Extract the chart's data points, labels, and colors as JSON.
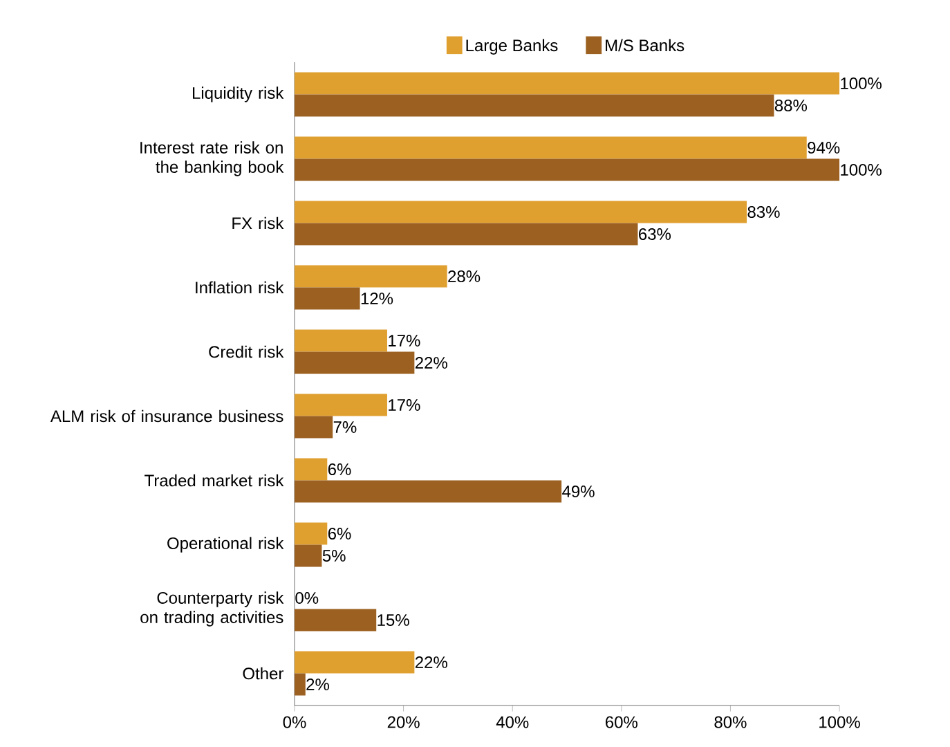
{
  "chart_data": {
    "type": "bar",
    "orientation": "horizontal",
    "categories": [
      "Liquidity risk",
      "Interest rate risk on the banking book",
      "FX risk",
      "Inflation risk",
      "Credit risk",
      "ALM risk of insurance business",
      "Traded market risk",
      "Operational risk",
      "Counterparty risk on trading activities",
      "Other"
    ],
    "series": [
      {
        "name": "Large Banks",
        "color": "#e0a030",
        "values": [
          100,
          94,
          83,
          28,
          17,
          17,
          6,
          6,
          0,
          22
        ],
        "value_labels": [
          "100%",
          "94%",
          "83%",
          "28%",
          "17%",
          "17%",
          "6%",
          "6%",
          "0%",
          "22%"
        ]
      },
      {
        "name": "M/S Banks",
        "color": "#9c6020",
        "values": [
          88,
          100,
          63,
          12,
          22,
          7,
          49,
          5,
          15,
          2
        ],
        "value_labels": [
          "88%",
          "100%",
          "63%",
          "12%",
          "22%",
          "7%",
          "49%",
          "5%",
          "15%",
          "2%"
        ]
      }
    ],
    "xlim": [
      0,
      100
    ],
    "xticks": [
      {
        "value": 0,
        "label": "0%"
      },
      {
        "value": 20,
        "label": "20%"
      },
      {
        "value": 40,
        "label": "40%"
      },
      {
        "value": 60,
        "label": "60%"
      },
      {
        "value": 80,
        "label": "80%"
      },
      {
        "value": 100,
        "label": "100%"
      }
    ],
    "legend": "top",
    "grid": false
  }
}
